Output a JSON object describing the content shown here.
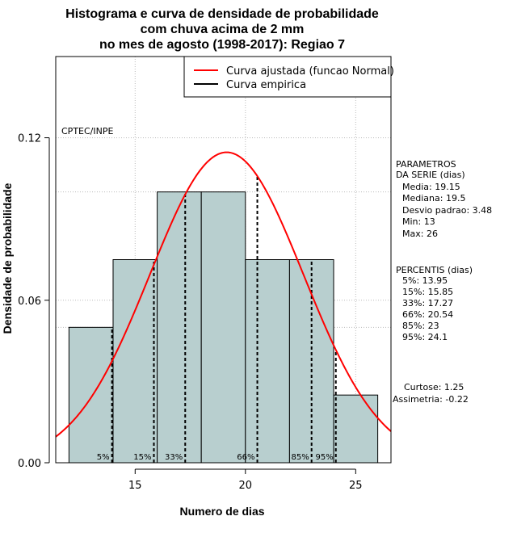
{
  "chart_data": {
    "type": "bar",
    "title": [
      "Histograma e curva de densidade de probabilidade",
      "com chuva acima de 2 mm",
      "no mes de agosto (1998-2017): Regiao 7"
    ],
    "xlabel": "Numero de dias",
    "ylabel": "Densidade de probabilidade",
    "xlim": [
      11.4,
      26.6
    ],
    "ylim": [
      0,
      0.15
    ],
    "xticks": [
      15,
      20,
      25
    ],
    "xtick_labels": [
      "15",
      "20",
      "25"
    ],
    "yticks": [
      0.0,
      0.06,
      0.12
    ],
    "ytick_labels": [
      "0.00",
      "0.06",
      "0.12"
    ],
    "grid": true,
    "grid_x": [
      15,
      20,
      25
    ],
    "grid_y": [
      0,
      0.05,
      0.06,
      0.1,
      0.12
    ],
    "bins": [
      {
        "x0": 12,
        "x1": 14,
        "density": 0.05
      },
      {
        "x0": 14,
        "x1": 16,
        "density": 0.075
      },
      {
        "x0": 16,
        "x1": 18,
        "density": 0.1
      },
      {
        "x0": 18,
        "x1": 20,
        "density": 0.1
      },
      {
        "x0": 20,
        "x1": 22,
        "density": 0.075
      },
      {
        "x0": 22,
        "x1": 24,
        "density": 0.075
      },
      {
        "x0": 24,
        "x1": 26,
        "density": 0.025
      }
    ],
    "normal_fit": {
      "mean": 19.15,
      "sd": 3.48,
      "color": "#ff0000"
    },
    "bar_fill": "#b8cfcf",
    "percentile_lines": [
      {
        "label": "5%",
        "x": 13.95
      },
      {
        "label": "15%",
        "x": 15.85
      },
      {
        "label": "33%",
        "x": 17.27
      },
      {
        "label": "66%",
        "x": 20.54
      },
      {
        "label": "85%",
        "x": 23
      },
      {
        "label": "95%",
        "x": 24.1
      }
    ],
    "legend": {
      "position": "top-right",
      "entries": [
        {
          "label": "Curva ajustada (funcao Normal)",
          "color": "#ff0000"
        },
        {
          "label": "Curva empirica",
          "color": "#000000"
        }
      ]
    },
    "credit": "CPTEC/INPE",
    "parameters": {
      "heading": [
        "PARAMETROS",
        "DA SERIE (dias)"
      ],
      "lines": [
        "Media: 19.15",
        "Mediana: 19.5",
        "Desvio padrao: 3.48",
        "Min: 13",
        "Max: 26"
      ]
    },
    "percentiles": {
      "heading": "PERCENTIS (dias)",
      "lines": [
        "5%: 13.95",
        "15%: 15.85",
        "33%: 17.27",
        "66%: 20.54",
        "85%: 23",
        "95%: 24.1"
      ]
    },
    "shape": {
      "lines": [
        "Curtose: 1.25",
        "Assimetria: -0.22"
      ]
    }
  }
}
